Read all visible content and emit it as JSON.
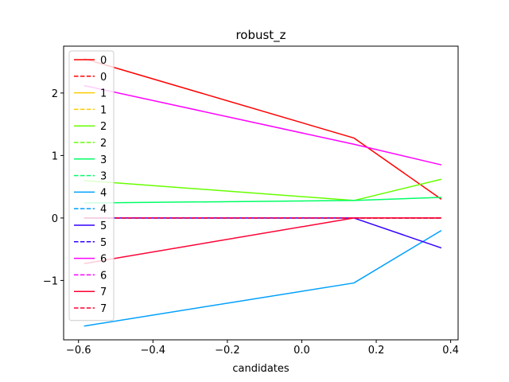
{
  "chart_data": {
    "type": "line",
    "title": "robust_z",
    "xlabel": "candidates",
    "ylabel": "",
    "xlim": [
      -0.64,
      0.42
    ],
    "ylim": [
      -1.95,
      2.75
    ],
    "xticks": [
      -0.6,
      -0.4,
      -0.2,
      0.0,
      0.2,
      0.4
    ],
    "xtick_labels": [
      "−0.6",
      "−0.4",
      "−0.2",
      "0.0",
      "0.2",
      "0.4"
    ],
    "yticks": [
      -1,
      0,
      1,
      2
    ],
    "ytick_labels": [
      "−1",
      "0",
      "1",
      "2"
    ],
    "legend_position": "upper-left",
    "x": [
      -0.585,
      0.14,
      0.375
    ],
    "series": [
      {
        "name": "0",
        "color": "#ff0000",
        "dash": "solid",
        "values": [
          2.55,
          1.28,
          0.3
        ]
      },
      {
        "name": "0",
        "color": "#ff0000",
        "dash": "dashed",
        "values": [
          0.0,
          0.0,
          0.0
        ]
      },
      {
        "name": "1",
        "color": "#ffcc00",
        "dash": "solid",
        "values": [
          0.0,
          0.0,
          0.0
        ]
      },
      {
        "name": "1",
        "color": "#ffcc00",
        "dash": "dashed",
        "values": [
          0.0,
          0.0,
          0.0
        ]
      },
      {
        "name": "2",
        "color": "#66ff00",
        "dash": "solid",
        "values": [
          0.6,
          0.28,
          0.62
        ]
      },
      {
        "name": "2",
        "color": "#66ff00",
        "dash": "dashed",
        "values": [
          0.0,
          0.0,
          0.0
        ]
      },
      {
        "name": "3",
        "color": "#00ff66",
        "dash": "solid",
        "values": [
          0.24,
          0.28,
          0.33
        ]
      },
      {
        "name": "3",
        "color": "#00ff66",
        "dash": "dashed",
        "values": [
          0.0,
          0.0,
          0.0
        ]
      },
      {
        "name": "4",
        "color": "#00a0ff",
        "dash": "solid",
        "values": [
          -1.73,
          -1.04,
          -0.2
        ]
      },
      {
        "name": "4",
        "color": "#00a0ff",
        "dash": "dashed",
        "values": [
          0.0,
          0.0,
          0.0
        ]
      },
      {
        "name": "5",
        "color": "#3300ff",
        "dash": "solid",
        "values": [
          0.0,
          0.0,
          -0.48
        ]
      },
      {
        "name": "5",
        "color": "#3300ff",
        "dash": "dashed",
        "values": [
          0.0,
          0.0,
          0.0
        ]
      },
      {
        "name": "6",
        "color": "#ff00ff",
        "dash": "solid",
        "values": [
          2.12,
          1.18,
          0.85
        ]
      },
      {
        "name": "6",
        "color": "#ff00ff",
        "dash": "dashed",
        "values": [
          0.0,
          0.0,
          0.0
        ]
      },
      {
        "name": "7",
        "color": "#ff0033",
        "dash": "solid",
        "values": [
          -0.73,
          0.0,
          0.0
        ]
      },
      {
        "name": "7",
        "color": "#ff0033",
        "dash": "dashed",
        "values": [
          0.0,
          0.0,
          0.0
        ]
      }
    ]
  }
}
